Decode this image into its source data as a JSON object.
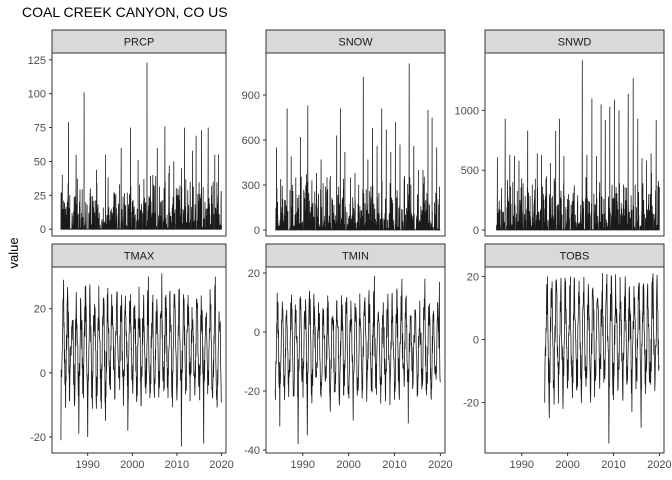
{
  "chart_data": {
    "type": "line",
    "title": "COAL CREEK CANYON, CO US",
    "ylabel": "value",
    "xlabel": "",
    "facets": "scales=free, 2 rows x 3 columns",
    "xlim": [
      1982,
      2021
    ],
    "x_ticks": [
      1990,
      2000,
      2010,
      2020
    ],
    "panels": [
      {
        "name": "PRCP",
        "ylim": [
          -5,
          130
        ],
        "y_ticks": [
          0,
          25,
          50,
          75,
          100,
          125
        ],
        "x_start": 1984,
        "x_end": 2020,
        "base": 0,
        "peaks": [
          [
            1984.3,
            40
          ],
          [
            1985.0,
            15
          ],
          [
            1985.7,
            79
          ],
          [
            1986.5,
            12
          ],
          [
            1987.4,
            55
          ],
          [
            1988.3,
            16
          ],
          [
            1989.2,
            101
          ],
          [
            1990.6,
            30
          ],
          [
            1991.3,
            16
          ],
          [
            1992.0,
            44
          ],
          [
            1993.5,
            16
          ],
          [
            1994.0,
            55
          ],
          [
            1995.3,
            15
          ],
          [
            1996.0,
            27
          ],
          [
            1997.5,
            60
          ],
          [
            1998.3,
            18
          ],
          [
            1999.6,
            75
          ],
          [
            2000.3,
            15
          ],
          [
            2001.3,
            51
          ],
          [
            2002.6,
            37
          ],
          [
            2003.3,
            123
          ],
          [
            2004.0,
            20
          ],
          [
            2004.6,
            40
          ],
          [
            2005.6,
            60
          ],
          [
            2006.3,
            20
          ],
          [
            2007.3,
            76
          ],
          [
            2008.3,
            47
          ],
          [
            2009.3,
            50
          ],
          [
            2010.3,
            20
          ],
          [
            2011.0,
            45
          ],
          [
            2011.7,
            75
          ],
          [
            2012.6,
            18
          ],
          [
            2013.5,
            58
          ],
          [
            2014.3,
            69
          ],
          [
            2015.5,
            73
          ],
          [
            2016.3,
            20
          ],
          [
            2017.0,
            75
          ],
          [
            2017.8,
            32
          ],
          [
            2018.5,
            55
          ],
          [
            2019.3,
            55
          ]
        ]
      },
      {
        "name": "SNOW",
        "ylim": [
          -40,
          1180
        ],
        "y_ticks": [
          0,
          300,
          600,
          900
        ],
        "x_start": 1984,
        "x_end": 2020,
        "base": 0,
        "peaks": [
          [
            1984.3,
            550
          ],
          [
            1985.2,
            340
          ],
          [
            1986.6,
            810
          ],
          [
            1987.5,
            490
          ],
          [
            1988.5,
            350
          ],
          [
            1989.5,
            620
          ],
          [
            1990.3,
            250
          ],
          [
            1991.1,
            830
          ],
          [
            1992.0,
            330
          ],
          [
            1993.0,
            380
          ],
          [
            1994.0,
            470
          ],
          [
            1995.3,
            350
          ],
          [
            1996.0,
            360
          ],
          [
            1997.4,
            630
          ],
          [
            1998.2,
            810
          ],
          [
            1999.2,
            520
          ],
          [
            2000.4,
            350
          ],
          [
            2001.4,
            380
          ],
          [
            2002.2,
            300
          ],
          [
            2003.2,
            1020
          ],
          [
            2004.2,
            470
          ],
          [
            2005.2,
            680
          ],
          [
            2006.2,
            560
          ],
          [
            2007.2,
            810
          ],
          [
            2008.2,
            670
          ],
          [
            2009.2,
            520
          ],
          [
            2010.2,
            720
          ],
          [
            2011.2,
            570
          ],
          [
            2012.2,
            360
          ],
          [
            2013.2,
            1110
          ],
          [
            2014.2,
            560
          ],
          [
            2015.2,
            400
          ],
          [
            2016.2,
            400
          ],
          [
            2017.3,
            800
          ],
          [
            2018.2,
            750
          ],
          [
            2019.2,
            550
          ],
          [
            2019.8,
            290
          ]
        ]
      },
      {
        "name": "SNWD",
        "ylim": [
          -50,
          1480
        ],
        "y_ticks": [
          0,
          500,
          1000
        ],
        "x_start": 1984.5,
        "x_end": 2020,
        "base": 0,
        "peaks": [
          [
            1984.7,
            610
          ],
          [
            1985.6,
            350
          ],
          [
            1986.4,
            930
          ],
          [
            1987.4,
            630
          ],
          [
            1988.4,
            620
          ],
          [
            1989.4,
            580
          ],
          [
            1990.3,
            390
          ],
          [
            1991.3,
            830
          ],
          [
            1992.3,
            380
          ],
          [
            1993.4,
            640
          ],
          [
            1994.3,
            630
          ],
          [
            1995.3,
            430
          ],
          [
            1996.3,
            560
          ],
          [
            1997.4,
            830
          ],
          [
            1998.2,
            930
          ],
          [
            1999.2,
            620
          ],
          [
            2000.2,
            300
          ],
          [
            2001.2,
            310
          ],
          [
            2002.2,
            290
          ],
          [
            2003.2,
            1420
          ],
          [
            2004.2,
            630
          ],
          [
            2005.3,
            1100
          ],
          [
            2006.3,
            620
          ],
          [
            2007.3,
            1050
          ],
          [
            2008.2,
            920
          ],
          [
            2009.2,
            1030
          ],
          [
            2010.2,
            1090
          ],
          [
            2011.2,
            1000
          ],
          [
            2012.2,
            380
          ],
          [
            2013.2,
            1140
          ],
          [
            2014.3,
            1270
          ],
          [
            2015.3,
            930
          ],
          [
            2016.2,
            600
          ],
          [
            2017.2,
            580
          ],
          [
            2018.2,
            640
          ],
          [
            2019.3,
            920
          ],
          [
            2019.8,
            410
          ]
        ]
      },
      {
        "name": "TMAX",
        "ylim": [
          -25,
          33
        ],
        "y_ticks": [
          -20,
          0,
          20
        ],
        "x_start": 1984,
        "x_end": 2020,
        "seasonal": true,
        "mean": 8,
        "amplitude": 13,
        "extremes": [
          [
            1984.0,
            -21
          ],
          [
            1984.6,
            29
          ],
          [
            1988.0,
            -19
          ],
          [
            1990.0,
            -20
          ],
          [
            1994.0,
            -15
          ],
          [
            1999.0,
            -18
          ],
          [
            2003.6,
            30
          ],
          [
            2006.6,
            31
          ],
          [
            2011.0,
            -23
          ],
          [
            2016.0,
            -22
          ],
          [
            2018.6,
            30
          ]
        ]
      },
      {
        "name": "TMIN",
        "ylim": [
          -41,
          22
        ],
        "y_ticks": [
          -40,
          -20,
          0,
          20
        ],
        "x_start": 1984,
        "x_end": 2020,
        "seasonal": true,
        "mean": -5,
        "amplitude": 13,
        "extremes": [
          [
            1985.0,
            -32
          ],
          [
            1989.0,
            -38
          ],
          [
            1991.0,
            -35
          ],
          [
            1996.0,
            -27
          ],
          [
            2001.0,
            -30
          ],
          [
            2005.6,
            19
          ],
          [
            2011.6,
            18
          ],
          [
            2013.0,
            -31
          ],
          [
            2016.6,
            18
          ],
          [
            2019.8,
            17
          ]
        ]
      },
      {
        "name": "TOBS",
        "ylim": [
          -36,
          23
        ],
        "y_ticks": [
          -20,
          0,
          20
        ],
        "x_start": 1995,
        "x_end": 2020,
        "seasonal": true,
        "mean": 0,
        "amplitude": 14,
        "extremes": [
          [
            1995.0,
            -20
          ],
          [
            1995.6,
            20
          ],
          [
            1996.0,
            -25
          ],
          [
            1999.0,
            -22
          ],
          [
            2000.6,
            20
          ],
          [
            2005.0,
            -20
          ],
          [
            2007.6,
            21
          ],
          [
            2009.0,
            -33
          ],
          [
            2014.0,
            -23
          ],
          [
            2016.0,
            -28
          ],
          [
            2018.6,
            21
          ]
        ]
      }
    ]
  }
}
